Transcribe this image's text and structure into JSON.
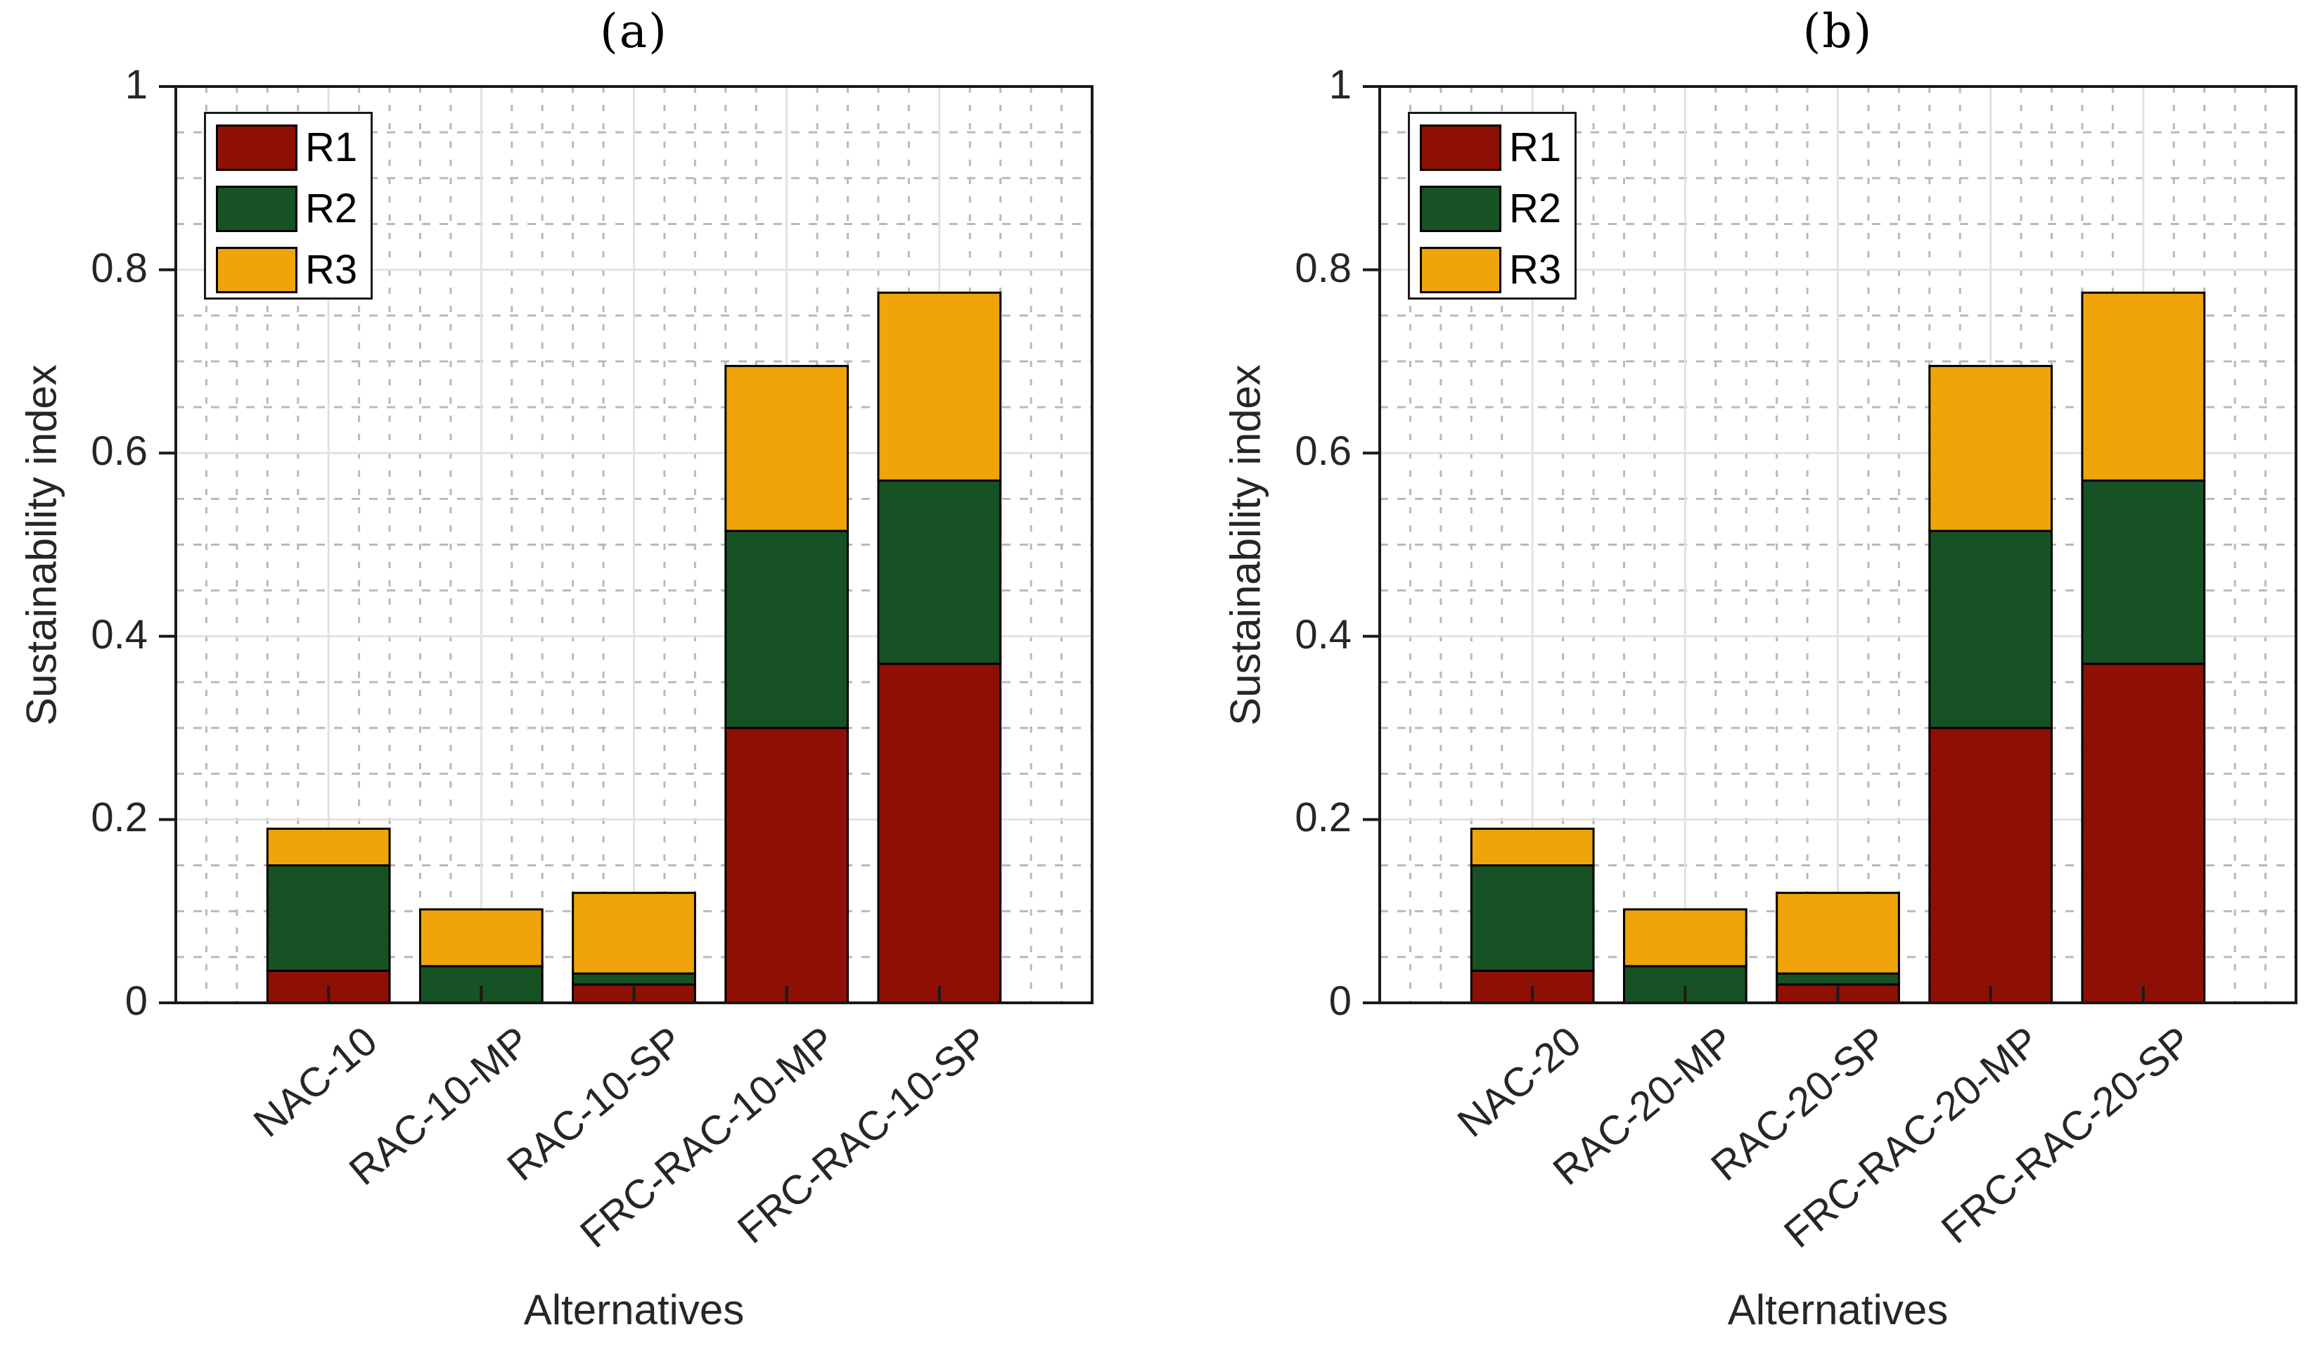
{
  "figure": {
    "background": "#FFFFFF",
    "axis_color": "#1A1A1A",
    "text_color": "#262626",
    "grid": {
      "major_color": "#E2E2E2",
      "minor_color": "#B9B9B9",
      "y_major_step": 0.2,
      "y_minor_step": 0.05,
      "x_minor_step": 0.2,
      "major_on": true,
      "minor_on": true
    },
    "legend": {
      "position": "top-left",
      "entries": [
        {
          "label": "R1",
          "color": "#8E1004"
        },
        {
          "label": "R2",
          "color": "#175224"
        },
        {
          "label": "R3",
          "color": "#F0A40A"
        }
      ]
    }
  },
  "chart_data": [
    {
      "type": "bar",
      "stacked": true,
      "title": "(a)",
      "xlabel": "Alternatives",
      "ylabel": "Sustainability index",
      "ylim": [
        0,
        1
      ],
      "yticks": [
        "0",
        "0.2",
        "0.4",
        "0.6",
        "0.8",
        "1"
      ],
      "ytick_values": [
        0,
        0.2,
        0.4,
        0.6,
        0.8,
        1
      ],
      "bar_width_fraction": 0.8,
      "categories": [
        "NAC-10",
        "RAC-10-MP",
        "RAC-10-SP",
        "FRC-RAC-10-MP",
        "FRC-RAC-10-SP"
      ],
      "series": [
        {
          "name": "R1",
          "color": "#8E1004",
          "values": [
            0.035,
            0,
            0.02,
            0.3,
            0.37
          ]
        },
        {
          "name": "R2",
          "color": "#175224",
          "values": [
            0.115,
            0.04,
            0.012,
            0.215,
            0.2
          ]
        },
        {
          "name": "R3",
          "color": "#F0A40A",
          "values": [
            0.04,
            0.062,
            0.088,
            0.18,
            0.205
          ]
        }
      ],
      "stack_totals": [
        0.19,
        0.102,
        0.12,
        0.695,
        0.775
      ],
      "legend_entries": [
        "R1",
        "R2",
        "R3"
      ]
    },
    {
      "type": "bar",
      "stacked": true,
      "title": "(b)",
      "xlabel": "Alternatives",
      "ylabel": "Sustainability index",
      "ylim": [
        0,
        1
      ],
      "yticks": [
        "0",
        "0.2",
        "0.4",
        "0.6",
        "0.8",
        "1"
      ],
      "ytick_values": [
        0,
        0.2,
        0.4,
        0.6,
        0.8,
        1
      ],
      "bar_width_fraction": 0.8,
      "categories": [
        "NAC-20",
        "RAC-20-MP",
        "RAC-20-SP",
        "FRC-RAC-20-MP",
        "FRC-RAC-20-SP"
      ],
      "series": [
        {
          "name": "R1",
          "color": "#8E1004",
          "values": [
            0.035,
            0,
            0.02,
            0.3,
            0.37
          ]
        },
        {
          "name": "R2",
          "color": "#175224",
          "values": [
            0.115,
            0.04,
            0.012,
            0.215,
            0.2
          ]
        },
        {
          "name": "R3",
          "color": "#F0A40A",
          "values": [
            0.04,
            0.062,
            0.088,
            0.18,
            0.205
          ]
        }
      ],
      "stack_totals": [
        0.19,
        0.102,
        0.12,
        0.695,
        0.775
      ],
      "legend_entries": [
        "R1",
        "R2",
        "R3"
      ]
    }
  ]
}
